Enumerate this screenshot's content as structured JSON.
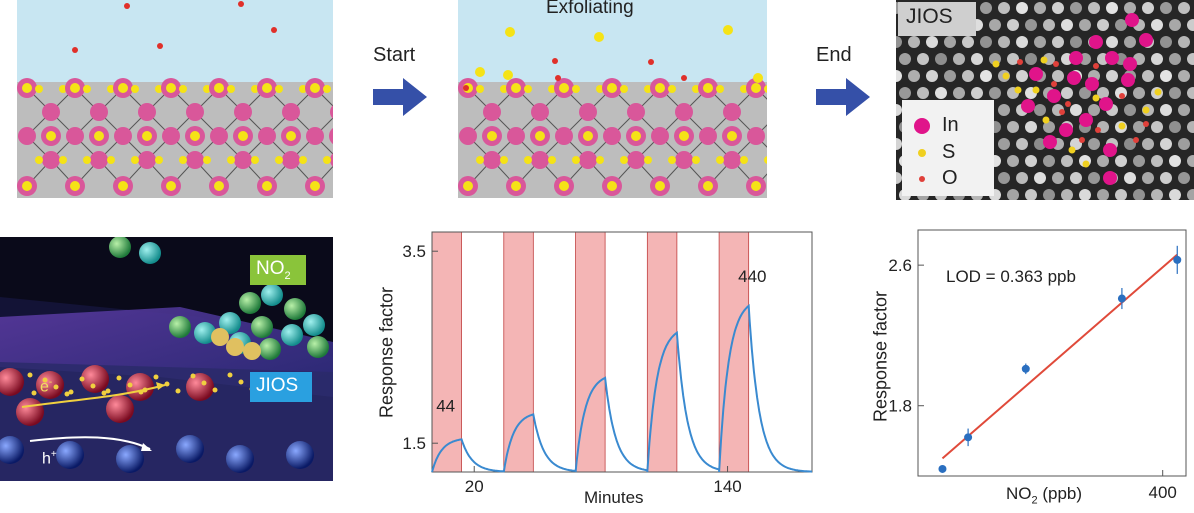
{
  "stages": {
    "start_label": "Start",
    "end_label": "End",
    "exfoliating_label": "Exfoliating",
    "jios_label": "JIOS"
  },
  "legend": {
    "items": [
      {
        "label": "In",
        "color": "#e0148a"
      },
      {
        "label": "S",
        "color": "#f0d020"
      },
      {
        "label": "O",
        "color": "#e0403a"
      }
    ]
  },
  "schematic": {
    "no2_label": "NO",
    "no2_sub": "2",
    "jios_label": "JIOS",
    "electron_label": "e",
    "electron_sup": "-",
    "hole_label": "h",
    "hole_sup": "+"
  },
  "colors": {
    "water": "#c8e6f2",
    "substrate": "#bdbdbd",
    "indium": "#d9579a",
    "sulfur": "#f5e316",
    "oxygen": "#e0302a",
    "arrow": "#3550a8",
    "shade": "#f4b5b5",
    "curve": "#3a8ad0",
    "fit": "#e04a3a",
    "point": "#2a6fc0"
  },
  "chart_data": [
    {
      "type": "line",
      "xlabel": "Minutes",
      "ylabel": "Response factor",
      "xticks": [
        20,
        140
      ],
      "yticks": [
        1.5,
        3.5
      ],
      "xlim": [
        0,
        180
      ],
      "ylim": [
        1.2,
        3.7
      ],
      "annotations": [
        {
          "text": "44",
          "x": 2,
          "y": 1.83
        },
        {
          "text": "440",
          "x": 145,
          "y": 3.18
        }
      ],
      "exposures": [
        {
          "start": 0,
          "end": 14,
          "peak": 1.54
        },
        {
          "start": 34,
          "end": 48,
          "peak": 1.8
        },
        {
          "start": 68,
          "end": 82,
          "peak": 2.18
        },
        {
          "start": 102,
          "end": 116,
          "peak": 2.65
        },
        {
          "start": 136,
          "end": 150,
          "peak": 2.93
        }
      ],
      "baseline": 1.2
    },
    {
      "type": "scatter",
      "xlabel": "NO",
      "xlabel_sub": "2",
      "xlabel_unit": " (ppb)",
      "ylabel": "Response factor",
      "xticks": [
        400
      ],
      "yticks": [
        1.8,
        2.6
      ],
      "xlim": [
        -20,
        440
      ],
      "ylim": [
        1.4,
        2.8
      ],
      "annotation": "LOD = 0.363 ppb",
      "points": [
        {
          "x": 22,
          "y": 1.44,
          "err": 0.02
        },
        {
          "x": 66,
          "y": 1.62,
          "err": 0.05
        },
        {
          "x": 165,
          "y": 2.01,
          "err": 0.03
        },
        {
          "x": 330,
          "y": 2.41,
          "err": 0.06
        },
        {
          "x": 425,
          "y": 2.63,
          "err": 0.08
        }
      ],
      "fit": {
        "x0": 22,
        "y0": 1.5,
        "x1": 425,
        "y1": 2.66
      }
    }
  ]
}
